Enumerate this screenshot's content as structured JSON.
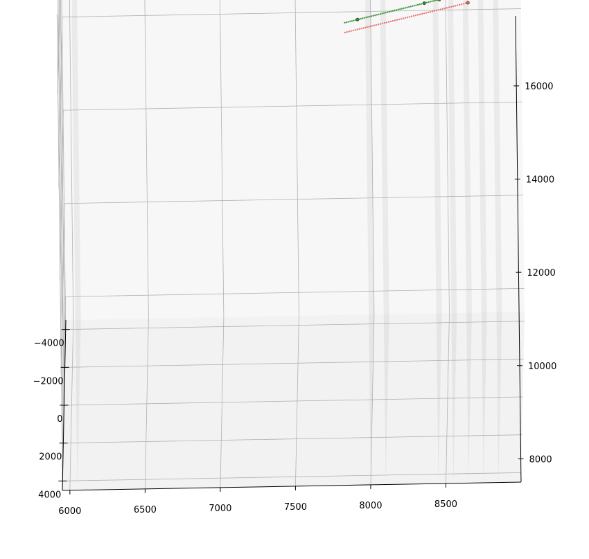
{
  "chart_data": {
    "type": "scatter",
    "projection": "3d",
    "title": "",
    "xlabel": "",
    "ylabel": "",
    "zlabel": "",
    "xlim": [
      5950,
      9000
    ],
    "ylim": [
      -4500,
      4500
    ],
    "zlim": [
      7500,
      17500
    ],
    "x_ticks": [
      6000,
      6500,
      7000,
      7500,
      8000,
      8500
    ],
    "x_tick_labels": [
      "6000",
      "6500",
      "7000",
      "7500",
      "8000",
      "8500"
    ],
    "y_ticks": [
      -4000,
      -2000,
      0,
      2000,
      4000
    ],
    "y_tick_labels": [
      "−4000",
      "−2000",
      "0",
      "2000",
      "4000"
    ],
    "z_ticks": [
      8000,
      10000,
      12000,
      14000,
      16000
    ],
    "z_tick_labels": [
      "8000",
      "10000",
      "12000",
      "14000",
      "16000"
    ],
    "grid": true,
    "legend": "none",
    "planes_x": [
      6050,
      8000,
      8100,
      8450,
      8550,
      8650,
      8750,
      8850
    ],
    "series": [
      {
        "color": "#2e8b2e",
        "marker": "dot",
        "x": [
          7850,
          8670
        ],
        "y": [
          1000,
          1000
        ],
        "z": [
          16000,
          16600
        ],
        "count": 70,
        "highlight_x": [
          7935,
          8380,
          8480
        ]
      },
      {
        "color": "#e85a5a",
        "marker": "dot",
        "x": [
          7850,
          8670
        ],
        "y": [
          1000,
          1000
        ],
        "z": [
          15790,
          16380
        ],
        "count": 60,
        "highlight_x": [
          8670
        ]
      }
    ]
  }
}
